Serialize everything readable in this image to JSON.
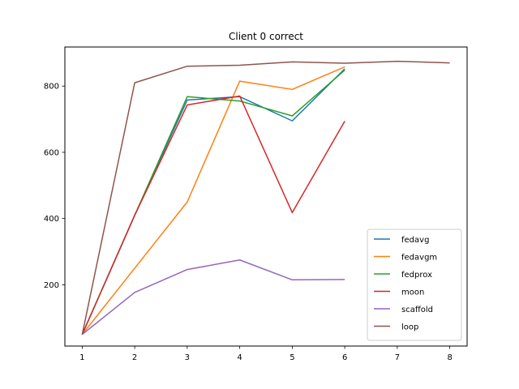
{
  "chart_data": {
    "type": "line",
    "title": "Client 0 correct",
    "xlabel": "",
    "ylabel": "",
    "xlim": [
      0.67,
      8.33
    ],
    "ylim": [
      15,
      918
    ],
    "xticks": [
      1,
      2,
      3,
      4,
      5,
      6,
      7,
      8
    ],
    "yticks": [
      200,
      400,
      600,
      800
    ],
    "grid": false,
    "legend_position": "lower-right",
    "series": [
      {
        "name": "fedavg",
        "color": "#1f77b4",
        "x": [
          1,
          2,
          3,
          4,
          5,
          6
        ],
        "y": [
          50,
          410,
          758,
          768,
          695,
          852
        ]
      },
      {
        "name": "fedavgm",
        "color": "#ff7f0e",
        "x": [
          1,
          2,
          3,
          4,
          5,
          6
        ],
        "y": [
          50,
          250,
          450,
          815,
          790,
          858
        ]
      },
      {
        "name": "fedprox",
        "color": "#2ca02c",
        "x": [
          1,
          2,
          3,
          4,
          5,
          6
        ],
        "y": [
          50,
          410,
          768,
          755,
          710,
          848
        ]
      },
      {
        "name": "moon",
        "color": "#d62728",
        "x": [
          1,
          2,
          3,
          4,
          5,
          6
        ],
        "y": [
          50,
          410,
          743,
          770,
          418,
          694
        ]
      },
      {
        "name": "scaffold",
        "color": "#9467bd",
        "x": [
          1,
          2,
          3,
          4,
          5,
          6
        ],
        "y": [
          50,
          177,
          246,
          275,
          215,
          216
        ]
      },
      {
        "name": "loop",
        "color": "#8c564b",
        "x": [
          1,
          2,
          3,
          4,
          5,
          6,
          7,
          8
        ],
        "y": [
          50,
          810,
          860,
          863,
          873,
          869,
          875,
          870
        ]
      }
    ]
  }
}
